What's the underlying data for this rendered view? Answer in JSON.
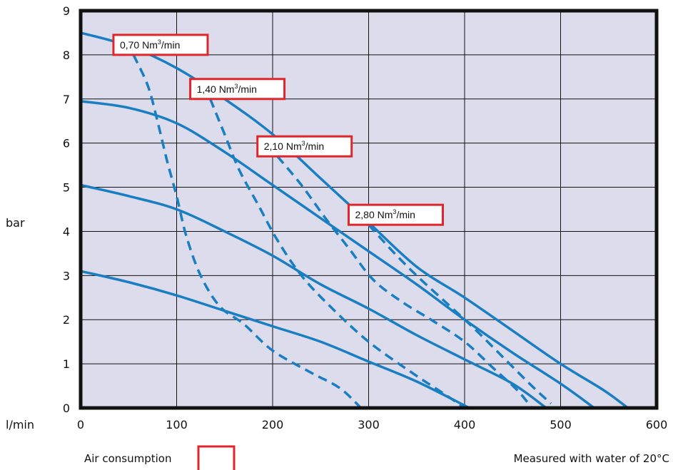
{
  "chart_data": {
    "type": "line",
    "x_unit": "l/min",
    "y_unit": "bar",
    "xlim": [
      0,
      600
    ],
    "ylim": [
      0,
      9
    ],
    "x_ticks": [
      0,
      100,
      200,
      300,
      400,
      500,
      600
    ],
    "y_ticks": [
      0,
      1,
      2,
      3,
      4,
      5,
      6,
      7,
      8,
      9
    ],
    "grid": true,
    "plot_background": "#dcdcec",
    "line_color": "#1a7ec2",
    "annotation_color": "#e0262b",
    "series": [
      {
        "kind": "solid",
        "points": [
          [
            0,
            3.1
          ],
          [
            50,
            2.85
          ],
          [
            100,
            2.55
          ],
          [
            150,
            2.2
          ],
          [
            200,
            1.85
          ],
          [
            250,
            1.5
          ],
          [
            300,
            1.05
          ],
          [
            350,
            0.6
          ],
          [
            405,
            0
          ]
        ]
      },
      {
        "kind": "solid",
        "points": [
          [
            0,
            5.05
          ],
          [
            50,
            4.8
          ],
          [
            100,
            4.5
          ],
          [
            150,
            4.0
          ],
          [
            200,
            3.45
          ],
          [
            250,
            2.8
          ],
          [
            300,
            2.25
          ],
          [
            350,
            1.65
          ],
          [
            400,
            1.1
          ],
          [
            450,
            0.55
          ],
          [
            485,
            0
          ]
        ]
      },
      {
        "kind": "solid",
        "points": [
          [
            0,
            6.95
          ],
          [
            50,
            6.8
          ],
          [
            100,
            6.45
          ],
          [
            150,
            5.8
          ],
          [
            200,
            5.05
          ],
          [
            250,
            4.3
          ],
          [
            300,
            3.55
          ],
          [
            350,
            2.8
          ],
          [
            400,
            2.0
          ],
          [
            450,
            1.25
          ],
          [
            500,
            0.55
          ],
          [
            535,
            0
          ]
        ]
      },
      {
        "kind": "solid",
        "points": [
          [
            0,
            8.5
          ],
          [
            50,
            8.2
          ],
          [
            100,
            7.7
          ],
          [
            150,
            7.0
          ],
          [
            200,
            6.2
          ],
          [
            250,
            5.2
          ],
          [
            300,
            4.2
          ],
          [
            350,
            3.2
          ],
          [
            400,
            2.5
          ],
          [
            450,
            1.75
          ],
          [
            500,
            1.0
          ],
          [
            545,
            0.4
          ],
          [
            570,
            0
          ]
        ]
      },
      {
        "kind": "dashed",
        "label": "0,70 Nm",
        "points": [
          [
            55,
            8.0
          ],
          [
            70,
            7.3
          ],
          [
            80,
            6.5
          ],
          [
            90,
            5.6
          ],
          [
            100,
            4.8
          ],
          [
            110,
            3.9
          ],
          [
            125,
            3.0
          ],
          [
            145,
            2.3
          ],
          [
            170,
            1.9
          ],
          [
            200,
            1.3
          ],
          [
            240,
            0.8
          ],
          [
            270,
            0.45
          ],
          [
            292,
            0
          ]
        ]
      },
      {
        "kind": "dashed",
        "label": "1,40 Nm",
        "points": [
          [
            135,
            7.0
          ],
          [
            150,
            6.2
          ],
          [
            165,
            5.4
          ],
          [
            185,
            4.6
          ],
          [
            205,
            3.8
          ],
          [
            230,
            3.0
          ],
          [
            260,
            2.3
          ],
          [
            300,
            1.5
          ],
          [
            345,
            0.8
          ],
          [
            380,
            0.3
          ],
          [
            400,
            0
          ]
        ]
      },
      {
        "kind": "dashed",
        "label": "2,10 Nm",
        "points": [
          [
            205,
            5.7
          ],
          [
            230,
            5.05
          ],
          [
            255,
            4.3
          ],
          [
            280,
            3.6
          ],
          [
            305,
            2.9
          ],
          [
            335,
            2.4
          ],
          [
            365,
            2.0
          ],
          [
            400,
            1.5
          ],
          [
            430,
            0.9
          ],
          [
            455,
            0.4
          ],
          [
            470,
            0
          ]
        ]
      },
      {
        "kind": "dashed",
        "label": "2,80 Nm",
        "points": [
          [
            300,
            4.15
          ],
          [
            325,
            3.55
          ],
          [
            350,
            3.0
          ],
          [
            380,
            2.4
          ],
          [
            410,
            1.8
          ],
          [
            440,
            1.15
          ],
          [
            470,
            0.5
          ],
          [
            490,
            0.1
          ]
        ]
      }
    ],
    "annotations": [
      {
        "text": "0,70 Nm",
        "sup": "3",
        "suffix": "/min",
        "x": 55,
        "y": 8.0
      },
      {
        "text": "1,40 Nm",
        "sup": "3",
        "suffix": "/min",
        "x": 135,
        "y": 7.0
      },
      {
        "text": "2,10 Nm",
        "sup": "3",
        "suffix": "/min",
        "x": 205,
        "y": 5.7
      },
      {
        "text": "2,80 Nm",
        "sup": "3",
        "suffix": "/min",
        "x": 300,
        "y": 4.15
      }
    ],
    "legend_text": "Air consumption",
    "footnote": "Measured with water of 20°C"
  }
}
